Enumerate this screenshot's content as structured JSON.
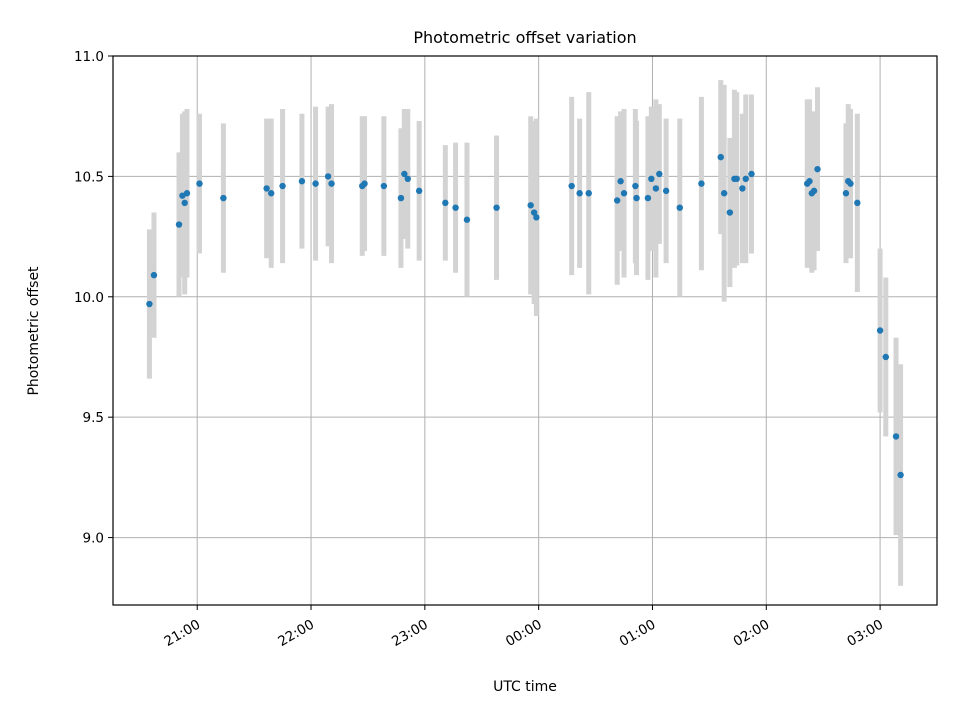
{
  "chart_data": {
    "type": "scatter",
    "title": "Photometric offset variation",
    "xlabel": "UTC time",
    "ylabel": "Photometric offset",
    "x_unit": "hours after 00:00 UTC (negative = previous evening)",
    "xlim": [
      -3.74,
      3.5
    ],
    "ylim": [
      8.72,
      11.0
    ],
    "x_ticks": [
      {
        "value": -3.0,
        "label": "21:00"
      },
      {
        "value": -2.0,
        "label": "22:00"
      },
      {
        "value": -1.0,
        "label": "23:00"
      },
      {
        "value": 0.0,
        "label": "00:00"
      },
      {
        "value": 1.0,
        "label": "01:00"
      },
      {
        "value": 2.0,
        "label": "02:00"
      },
      {
        "value": 3.0,
        "label": "03:00"
      }
    ],
    "y_ticks": [
      {
        "value": 9.0,
        "label": "9.0"
      },
      {
        "value": 9.5,
        "label": "9.5"
      },
      {
        "value": 10.0,
        "label": "10.0"
      },
      {
        "value": 10.5,
        "label": "10.5"
      },
      {
        "value": 11.0,
        "label": "11.0"
      }
    ],
    "grid": true,
    "marker_color": "#1f77b4",
    "errorbar_color": "#d3d3d3",
    "points": [
      {
        "x": -3.42,
        "y": 9.97,
        "err": 0.31
      },
      {
        "x": -3.38,
        "y": 10.09,
        "err": 0.26
      },
      {
        "x": -3.16,
        "y": 10.3,
        "err": 0.3
      },
      {
        "x": -3.13,
        "y": 10.42,
        "err": 0.34
      },
      {
        "x": -3.11,
        "y": 10.39,
        "err": 0.38
      },
      {
        "x": -3.09,
        "y": 10.43,
        "err": 0.35
      },
      {
        "x": -2.98,
        "y": 10.47,
        "err": 0.29
      },
      {
        "x": -2.77,
        "y": 10.41,
        "err": 0.31
      },
      {
        "x": -2.39,
        "y": 10.45,
        "err": 0.29
      },
      {
        "x": -2.35,
        "y": 10.43,
        "err": 0.31
      },
      {
        "x": -2.25,
        "y": 10.46,
        "err": 0.32
      },
      {
        "x": -2.08,
        "y": 10.48,
        "err": 0.28
      },
      {
        "x": -1.96,
        "y": 10.47,
        "err": 0.32
      },
      {
        "x": -1.85,
        "y": 10.5,
        "err": 0.29
      },
      {
        "x": -1.82,
        "y": 10.47,
        "err": 0.33
      },
      {
        "x": -1.55,
        "y": 10.46,
        "err": 0.29
      },
      {
        "x": -1.53,
        "y": 10.47,
        "err": 0.28
      },
      {
        "x": -1.36,
        "y": 10.46,
        "err": 0.29
      },
      {
        "x": -1.21,
        "y": 10.41,
        "err": 0.29
      },
      {
        "x": -1.18,
        "y": 10.51,
        "err": 0.27
      },
      {
        "x": -1.15,
        "y": 10.49,
        "err": 0.29
      },
      {
        "x": -1.05,
        "y": 10.44,
        "err": 0.29
      },
      {
        "x": -0.82,
        "y": 10.39,
        "err": 0.24
      },
      {
        "x": -0.73,
        "y": 10.37,
        "err": 0.27
      },
      {
        "x": -0.63,
        "y": 10.32,
        "err": 0.32
      },
      {
        "x": -0.37,
        "y": 10.37,
        "err": 0.3
      },
      {
        "x": -0.07,
        "y": 10.38,
        "err": 0.37
      },
      {
        "x": -0.04,
        "y": 10.35,
        "err": 0.38
      },
      {
        "x": -0.02,
        "y": 10.33,
        "err": 0.41
      },
      {
        "x": 0.29,
        "y": 10.46,
        "err": 0.37
      },
      {
        "x": 0.36,
        "y": 10.43,
        "err": 0.31
      },
      {
        "x": 0.44,
        "y": 10.43,
        "err": 0.42
      },
      {
        "x": 0.69,
        "y": 10.4,
        "err": 0.35
      },
      {
        "x": 0.72,
        "y": 10.48,
        "err": 0.29
      },
      {
        "x": 0.75,
        "y": 10.43,
        "err": 0.35
      },
      {
        "x": 0.85,
        "y": 10.46,
        "err": 0.32
      },
      {
        "x": 0.86,
        "y": 10.41,
        "err": 0.32
      },
      {
        "x": 0.96,
        "y": 10.41,
        "err": 0.34
      },
      {
        "x": 0.99,
        "y": 10.49,
        "err": 0.3
      },
      {
        "x": 1.03,
        "y": 10.45,
        "err": 0.37
      },
      {
        "x": 1.06,
        "y": 10.51,
        "err": 0.29
      },
      {
        "x": 1.12,
        "y": 10.44,
        "err": 0.3
      },
      {
        "x": 1.24,
        "y": 10.37,
        "err": 0.37
      },
      {
        "x": 1.43,
        "y": 10.47,
        "err": 0.36
      },
      {
        "x": 1.6,
        "y": 10.58,
        "err": 0.32
      },
      {
        "x": 1.63,
        "y": 10.43,
        "err": 0.45
      },
      {
        "x": 1.68,
        "y": 10.35,
        "err": 0.31
      },
      {
        "x": 1.72,
        "y": 10.49,
        "err": 0.37
      },
      {
        "x": 1.74,
        "y": 10.49,
        "err": 0.36
      },
      {
        "x": 1.79,
        "y": 10.45,
        "err": 0.31
      },
      {
        "x": 1.82,
        "y": 10.49,
        "err": 0.35
      },
      {
        "x": 1.87,
        "y": 10.51,
        "err": 0.33
      },
      {
        "x": 2.36,
        "y": 10.47,
        "err": 0.35
      },
      {
        "x": 2.38,
        "y": 10.48,
        "err": 0.34
      },
      {
        "x": 2.4,
        "y": 10.43,
        "err": 0.33
      },
      {
        "x": 2.42,
        "y": 10.44,
        "err": 0.33
      },
      {
        "x": 2.45,
        "y": 10.53,
        "err": 0.34
      },
      {
        "x": 2.7,
        "y": 10.43,
        "err": 0.29
      },
      {
        "x": 2.72,
        "y": 10.48,
        "err": 0.32
      },
      {
        "x": 2.74,
        "y": 10.47,
        "err": 0.31
      },
      {
        "x": 2.8,
        "y": 10.39,
        "err": 0.37
      },
      {
        "x": 3.0,
        "y": 9.86,
        "err": 0.34
      },
      {
        "x": 3.05,
        "y": 9.75,
        "err": 0.33
      },
      {
        "x": 3.14,
        "y": 9.42,
        "err": 0.41
      },
      {
        "x": 3.18,
        "y": 9.26,
        "err": 0.46
      }
    ]
  }
}
